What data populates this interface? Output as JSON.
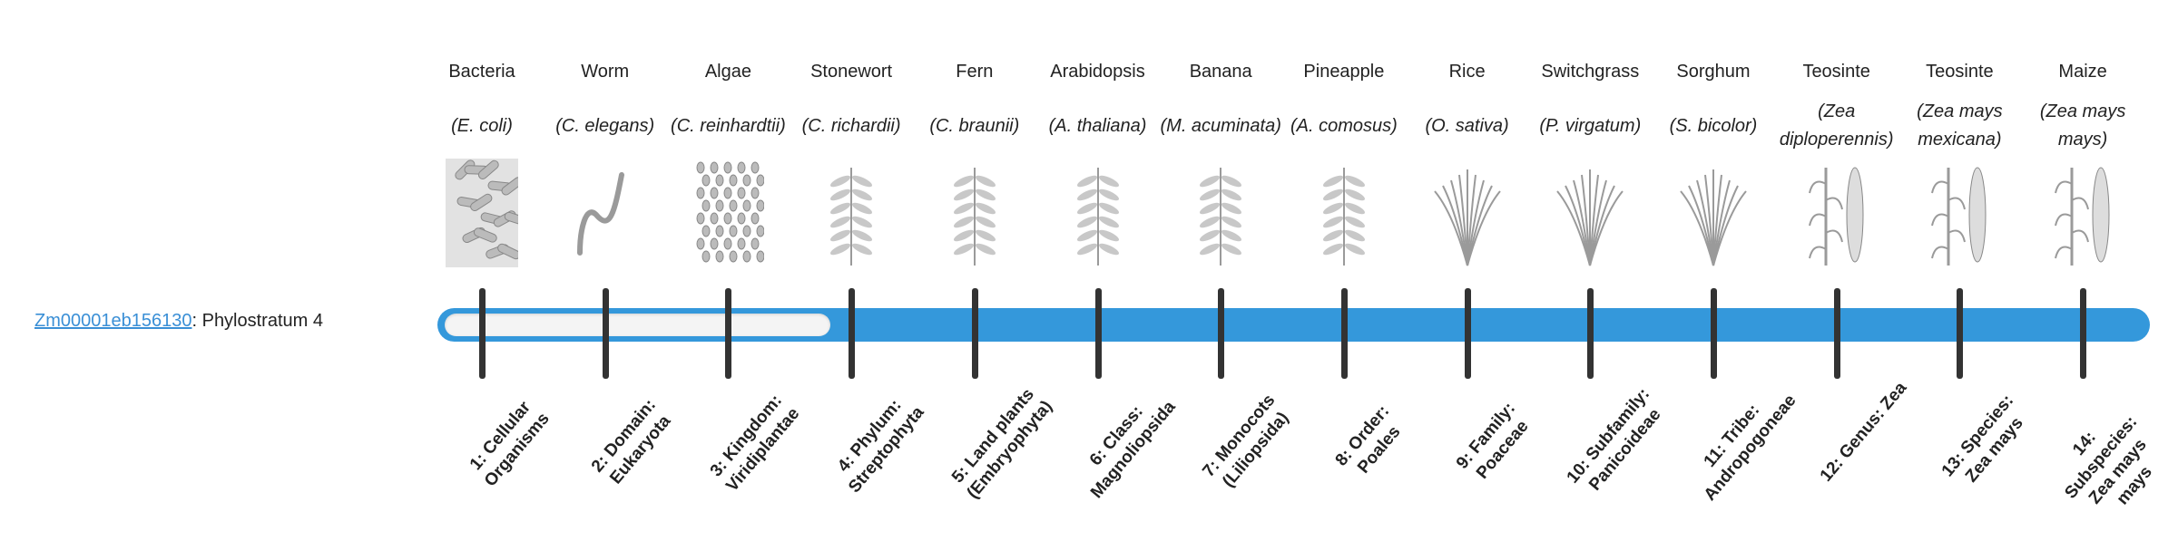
{
  "gene": {
    "id": "Zm00001eb156130",
    "suffix": ": Phylostratum 4"
  },
  "current_phylostratum": 4,
  "colors": {
    "bar": "#3498db",
    "inner": "#f4f4f4",
    "stick": "#333333",
    "link": "#3a8fd6"
  },
  "taxa": [
    {
      "common": "Bacteria",
      "species": "(E. coli)",
      "label": "1: Cellular Organisms",
      "icon": "bacteria"
    },
    {
      "common": "Worm",
      "species": "(C. elegans)",
      "label": "2: Domain: Eukaryota",
      "icon": "worm"
    },
    {
      "common": "Algae",
      "species": "(C. reinhardtii)",
      "label": "3: Kingdom: Viridiplantae",
      "icon": "algae"
    },
    {
      "common": "Stonewort",
      "species": "(C. richardii)",
      "label": "4: Phylum: Streptophyta",
      "icon": "plant"
    },
    {
      "common": "Fern",
      "species": "(C. braunii)",
      "label": "5: Land plants (Embryophyta)",
      "icon": "plant"
    },
    {
      "common": "Arabidopsis",
      "species": "(A. thaliana)",
      "label": "6: Class: Magnoliopsida",
      "icon": "plant"
    },
    {
      "common": "Banana",
      "species": "(M. acuminata)",
      "label": "7: Monocots (Liliopsida)",
      "icon": "plant"
    },
    {
      "common": "Pineapple",
      "species": "(A. comosus)",
      "label": "8: Order: Poales",
      "icon": "plant"
    },
    {
      "common": "Rice",
      "species": "(O. sativa)",
      "label": "9: Family: Poaceae",
      "icon": "grass"
    },
    {
      "common": "Switchgrass",
      "species": "(P. virgatum)",
      "label": "10: Subfamily: Panicoideae",
      "icon": "grass"
    },
    {
      "common": "Sorghum",
      "species": "(S. bicolor)",
      "label": "11: Tribe: Andropogoneae",
      "icon": "grass"
    },
    {
      "common": "Teosinte",
      "species": "(Zea diploperennis)",
      "label": "12: Genus: Zea",
      "icon": "maize"
    },
    {
      "common": "Teosinte",
      "species": "(Zea mays mexicana)",
      "label": "13: Species: Zea mays",
      "icon": "maize"
    },
    {
      "common": "Maize",
      "species": "(Zea mays mays)",
      "label": "14: Subspecies: Zea mays mays",
      "icon": "maize"
    }
  ]
}
